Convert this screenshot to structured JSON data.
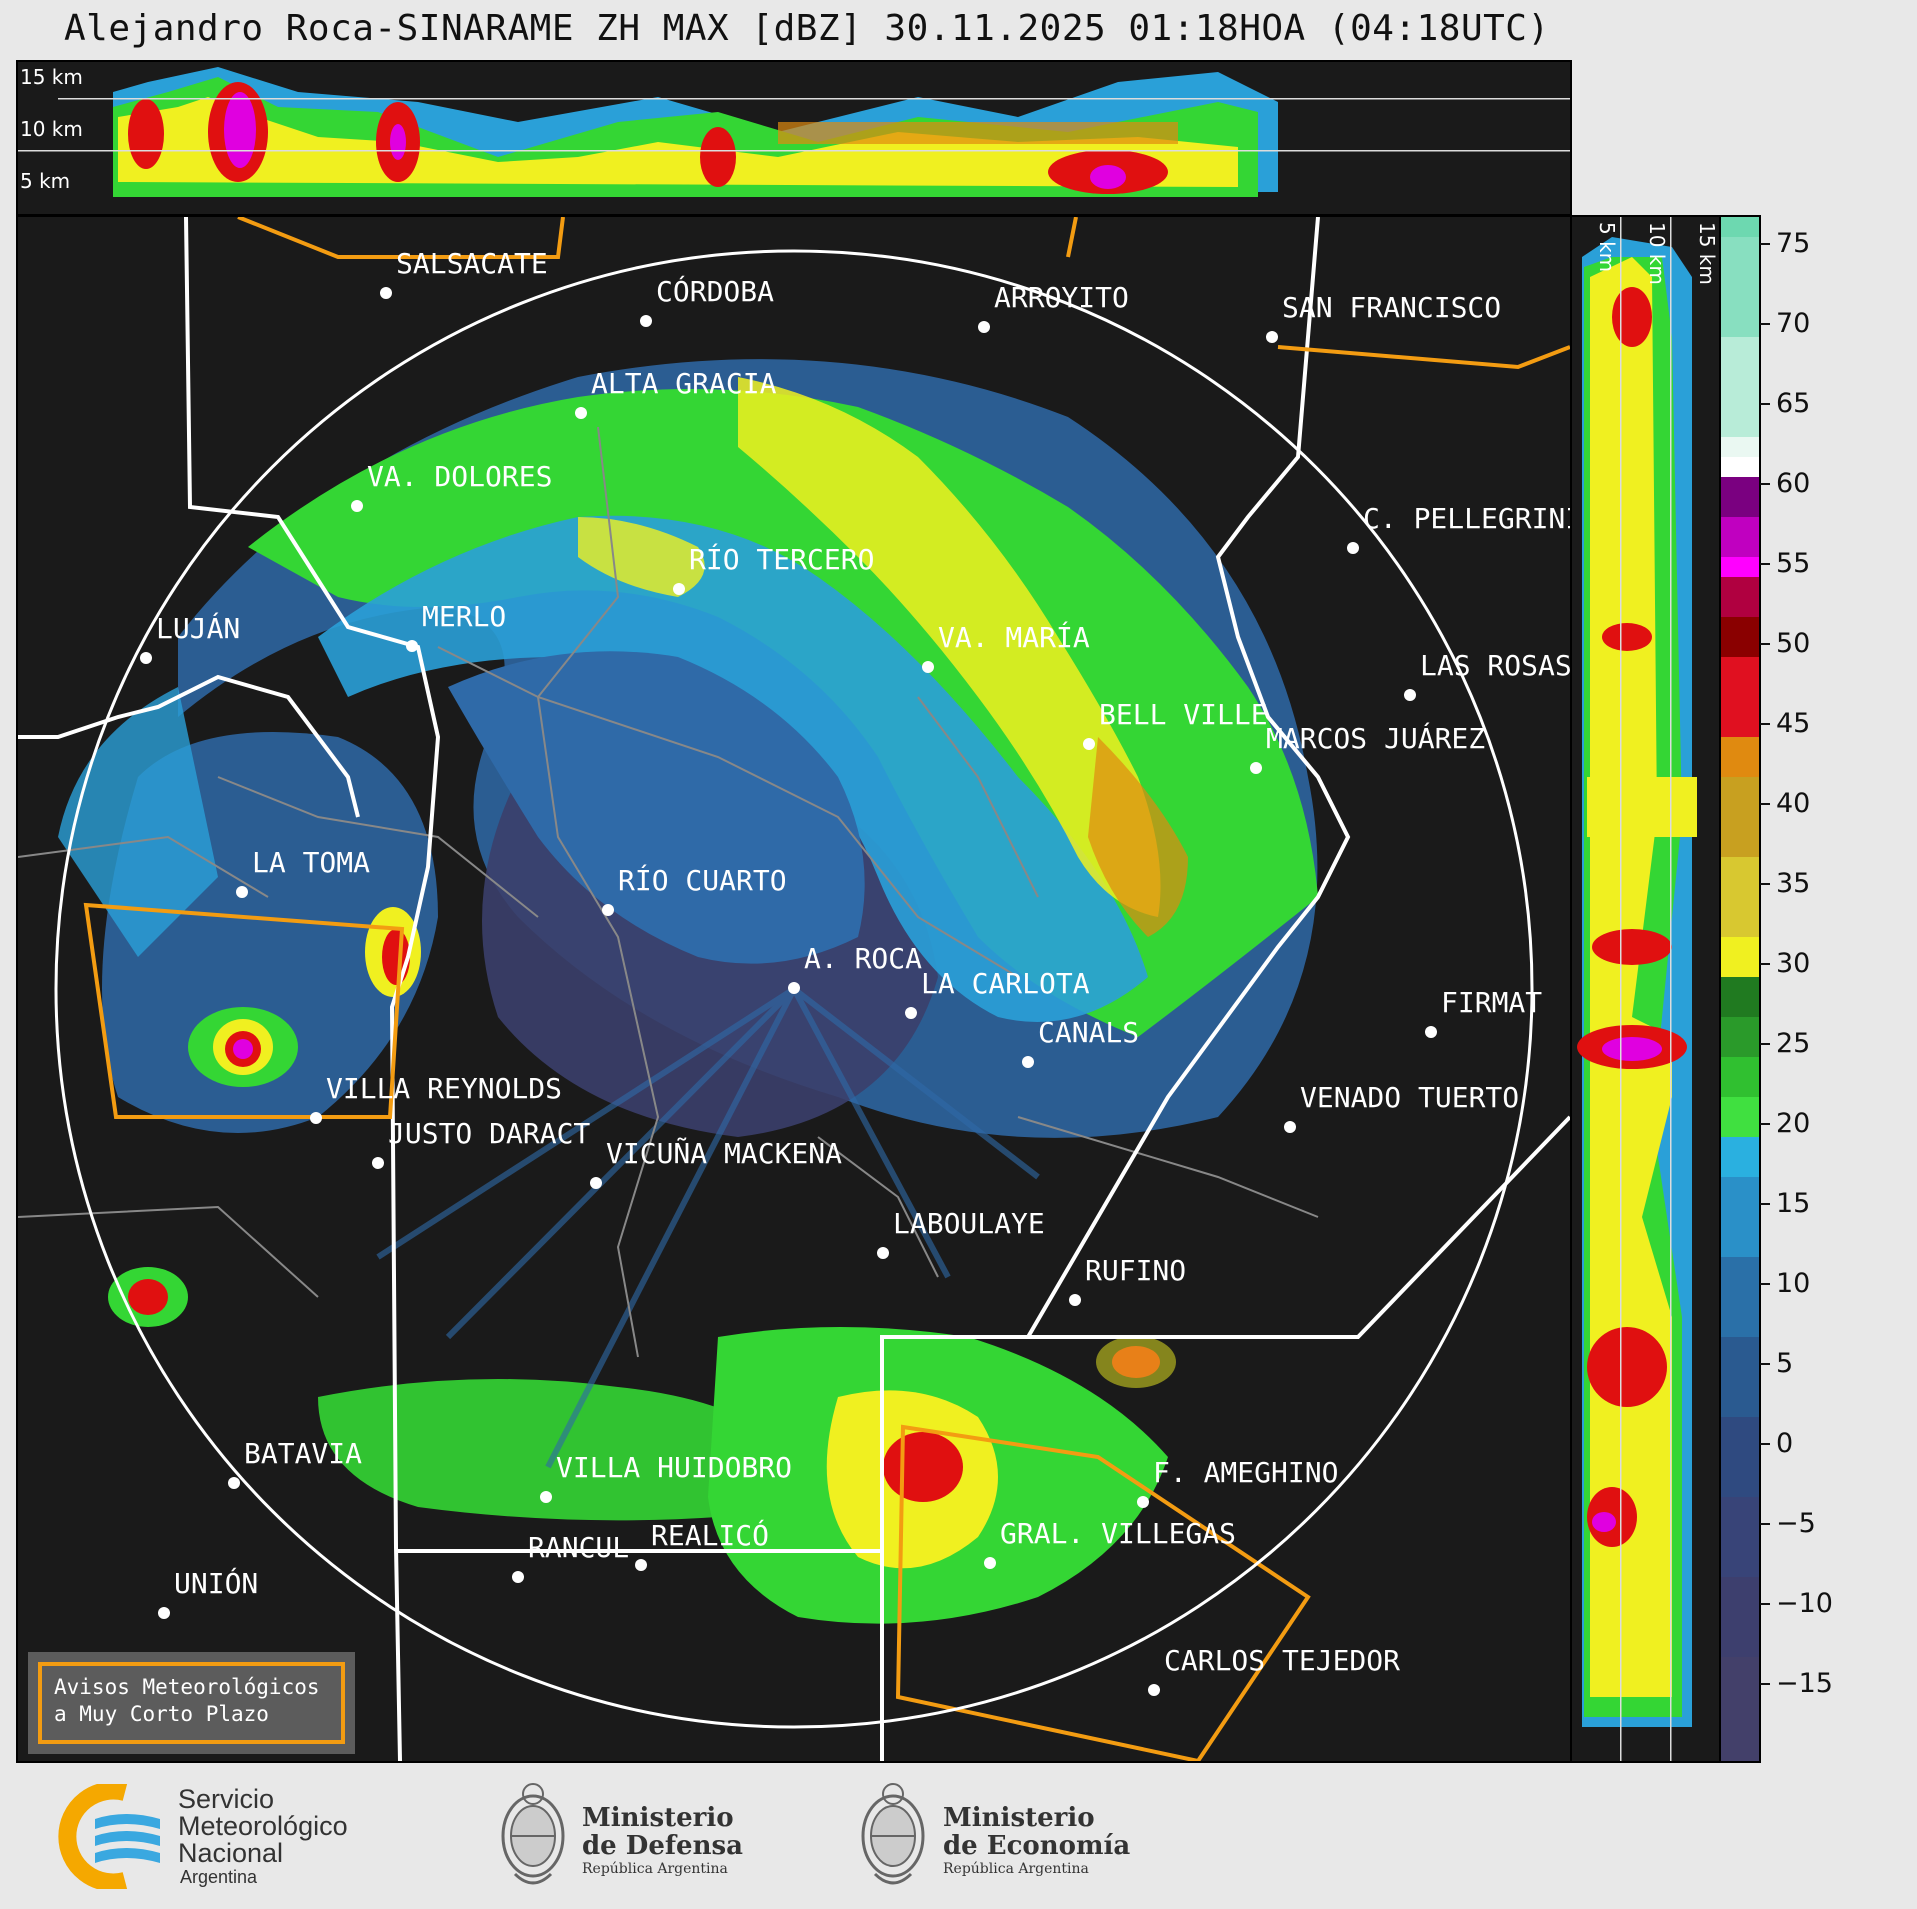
{
  "title": "Alejandro Roca-SINARAME ZH MAX [dBZ] 30.11.2025 01:18HOA (04:18UTC)",
  "top_strip": {
    "height_labels": [
      "15 km",
      "10 km",
      "5 km"
    ]
  },
  "side_strip": {
    "height_labels": [
      "5 km",
      "10 km",
      "15 km"
    ]
  },
  "colorbar": {
    "ticks": [
      "75",
      "70",
      "65",
      "60",
      "55",
      "50",
      "45",
      "40",
      "35",
      "30",
      "25",
      "20",
      "15",
      "10",
      "5",
      "0",
      "−5",
      "−10",
      "−15"
    ],
    "colors": {
      "deep_blue": "#3b3f6b",
      "blue": "#2f6aa8",
      "light_blue": "#2aa0d8",
      "green": "#34d634",
      "dark_green": "#1a7a1a",
      "yellow": "#f0f020",
      "orange": "#e08a10",
      "red": "#e01010",
      "dark_red": "#a00000",
      "magenta": "#e000e0",
      "purple": "#8a008a",
      "white": "#ffffff",
      "light_teal": "#a8e8d0",
      "teal": "#70d8b0"
    }
  },
  "cities": [
    {
      "name": "SALSACATE"
    },
    {
      "name": "CÓRDOBA"
    },
    {
      "name": "ARROYITO"
    },
    {
      "name": "SAN FRANCISCO"
    },
    {
      "name": "ALTA GRACIA"
    },
    {
      "name": "VA. DOLORES"
    },
    {
      "name": "C. PELLEGRINI"
    },
    {
      "name": "RÍO TERCERO"
    },
    {
      "name": "LUJÁN"
    },
    {
      "name": "MERLO"
    },
    {
      "name": "VA. MARÍA"
    },
    {
      "name": "LAS ROSAS"
    },
    {
      "name": "BELL VILLE"
    },
    {
      "name": "MARCOS JUÁREZ"
    },
    {
      "name": "LA TOMA"
    },
    {
      "name": "RÍO CUARTO"
    },
    {
      "name": "A. ROCA"
    },
    {
      "name": "LA CARLOTA"
    },
    {
      "name": "FIRMAT"
    },
    {
      "name": "CANALS"
    },
    {
      "name": "VILLA REYNOLDS"
    },
    {
      "name": "VENADO TUERTO"
    },
    {
      "name": "JUSTO DARACT"
    },
    {
      "name": "VICUÑA MACKENA"
    },
    {
      "name": "LABOULAYE"
    },
    {
      "name": "RUFINO"
    },
    {
      "name": "BATAVIA"
    },
    {
      "name": "VILLA HUIDOBRO"
    },
    {
      "name": "F. AMEGHINO"
    },
    {
      "name": "REALICÓ"
    },
    {
      "name": "RANCUL"
    },
    {
      "name": "GRAL. VILLEGAS"
    },
    {
      "name": "UNIÓN"
    },
    {
      "name": "CARLOS TEJEDOR"
    }
  ],
  "warning_box": {
    "line1": "Avisos Meteorológicos",
    "line2": "a Muy Corto Plazo"
  },
  "footer": {
    "smn": {
      "line1": "Servicio",
      "line2": "Meteorológico",
      "line3": "Nacional",
      "line4": "Argentina"
    },
    "defensa": {
      "line1": "Ministerio",
      "line2": "de Defensa",
      "line3": "República Argentina"
    },
    "economia": {
      "line1": "Ministerio",
      "line2": "de Economía",
      "line3": "República Argentina"
    }
  }
}
